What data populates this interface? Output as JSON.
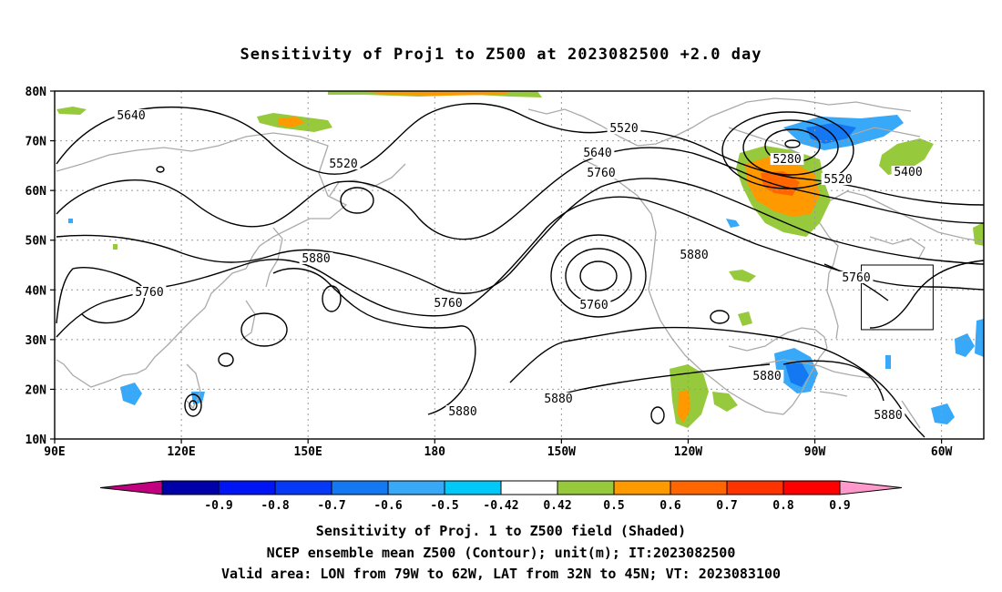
{
  "title": "Sensitivity of Proj1 to Z500 at 2023082500 +2.0 day",
  "map": {
    "lat_labels": [
      "80N",
      "70N",
      "60N",
      "50N",
      "40N",
      "30N",
      "20N",
      "10N"
    ],
    "lon_labels": [
      "90E",
      "120E",
      "150E",
      "180",
      "150W",
      "120W",
      "90W",
      "60W"
    ],
    "contour_labels": [
      "5640",
      "5520",
      "5520",
      "5640",
      "5760",
      "5280",
      "5520",
      "5400",
      "5880",
      "5880",
      "5760",
      "5760",
      "5760",
      "5760",
      "5880",
      "5880",
      "5880",
      "5880"
    ],
    "valid_area_box": {
      "lon": [
        -79,
        -62
      ],
      "lat": [
        32,
        45
      ]
    }
  },
  "colorbar": {
    "labels": [
      "-0.9",
      "-0.8",
      "-0.7",
      "-0.6",
      "-0.5",
      "-0.42",
      "0.42",
      "0.5",
      "0.6",
      "0.7",
      "0.8",
      "0.9"
    ],
    "colors": [
      "#c0007f",
      "#0000a8",
      "#0015f5",
      "#0538f7",
      "#1478f2",
      "#38a8f8",
      "#00c8f8",
      "#ffffff",
      "#97c93c",
      "#ff9900",
      "#ff6600",
      "#ff3300",
      "#ff0000",
      "#ff99cc"
    ]
  },
  "footer": {
    "line1": "Sensitivity of Proj. 1 to Z500 field (Shaded)",
    "line2": "NCEP ensemble mean Z500 (Contour); unit(m); IT:2023082500",
    "line3": "Valid area: LON from 79W to 62W, LAT from 32N to 45N; VT: 2023083100"
  }
}
